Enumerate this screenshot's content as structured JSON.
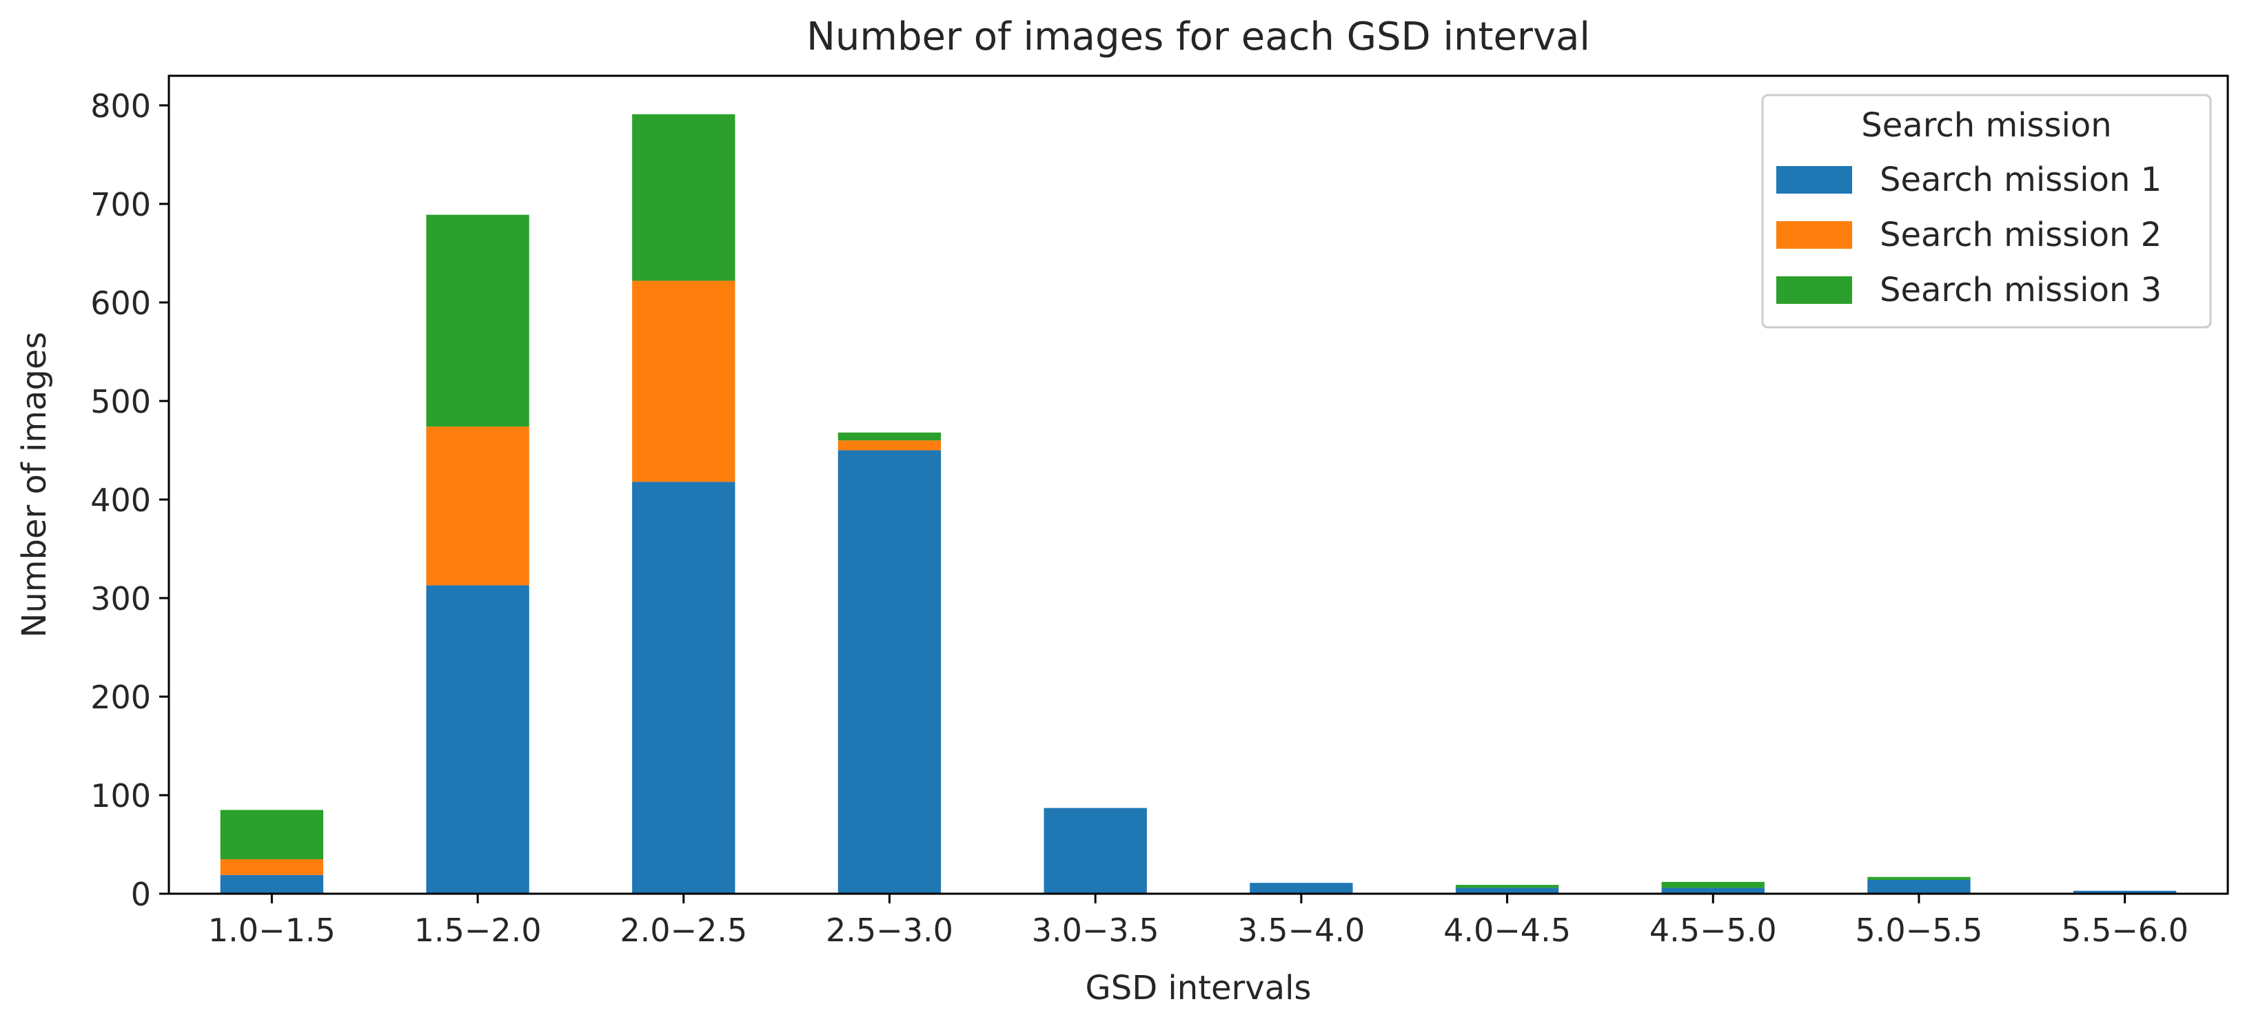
{
  "chart_data": {
    "type": "bar",
    "stacked": true,
    "title": "Number of images for each GSD interval",
    "xlabel": "GSD intervals",
    "ylabel": "Number of images",
    "ylim": [
      0,
      830
    ],
    "yticks": [
      0,
      100,
      200,
      300,
      400,
      500,
      600,
      700,
      800
    ],
    "categories": [
      "1.0−1.5",
      "1.5−2.0",
      "2.0−2.5",
      "2.5−3.0",
      "3.0−3.5",
      "3.5−4.0",
      "4.0−4.5",
      "4.5−5.0",
      "5.0−5.5",
      "5.5−6.0"
    ],
    "series": [
      {
        "name": "Search mission 1",
        "color": "#1f77b4",
        "values": [
          19,
          313,
          418,
          450,
          87,
          11,
          6,
          6,
          14,
          3
        ]
      },
      {
        "name": "Search mission 2",
        "color": "#ff7f0e",
        "values": [
          16,
          161,
          204,
          10,
          0,
          0,
          0,
          0,
          0,
          0
        ]
      },
      {
        "name": "Search mission 3",
        "color": "#2ca02c",
        "values": [
          50,
          215,
          169,
          8,
          0,
          0,
          3,
          6,
          3,
          0
        ]
      }
    ],
    "legend": {
      "title": "Search mission",
      "position": "top-right"
    },
    "grid": false
  }
}
